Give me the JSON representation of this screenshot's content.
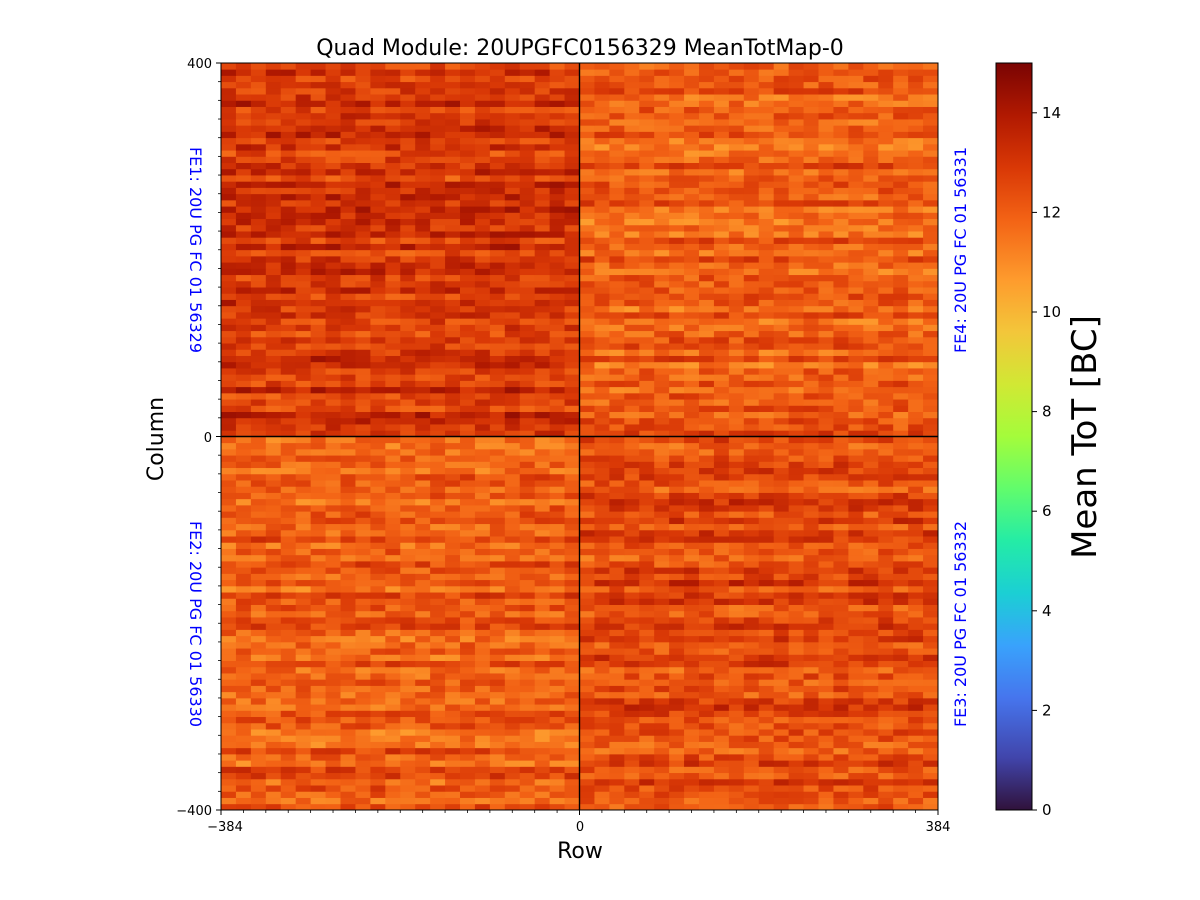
{
  "chart_data": {
    "type": "heatmap",
    "title": "Quad Module: 20UPGFC0156329 MeanTotMap-0",
    "xlabel": "Row",
    "ylabel": "Column",
    "xlim": [
      -384,
      384
    ],
    "ylim": [
      -400,
      400
    ],
    "x_ticks": [
      -384,
      0,
      384
    ],
    "y_ticks": [
      -400,
      0,
      400
    ],
    "x_tick_labels": [
      "−384",
      "0",
      "384"
    ],
    "y_tick_labels": [
      "−400",
      "0",
      "400"
    ],
    "colorbar": {
      "label": "Mean ToT [BC]",
      "range": [
        0,
        15
      ],
      "ticks": [
        0,
        2,
        4,
        6,
        8,
        10,
        12,
        14
      ],
      "colormap": "turbo"
    },
    "front_ends": [
      {
        "name": "FE1",
        "label": "FE1: 20U PG FC 01 56329",
        "quadrant": "top-left",
        "approx_mean_tot": 13.0
      },
      {
        "name": "FE4",
        "label": "FE4: 20U PG FC 01 56331",
        "quadrant": "top-right",
        "approx_mean_tot": 12.0
      },
      {
        "name": "FE2",
        "label": "FE2: 20U PG FC 01 56330",
        "quadrant": "bottom-left",
        "approx_mean_tot": 12.0
      },
      {
        "name": "FE3",
        "label": "FE3: 20U PG FC 01 56332",
        "quadrant": "bottom-right",
        "approx_mean_tot": 12.5
      }
    ],
    "annotation_color": "#0000ff",
    "grid": false
  }
}
